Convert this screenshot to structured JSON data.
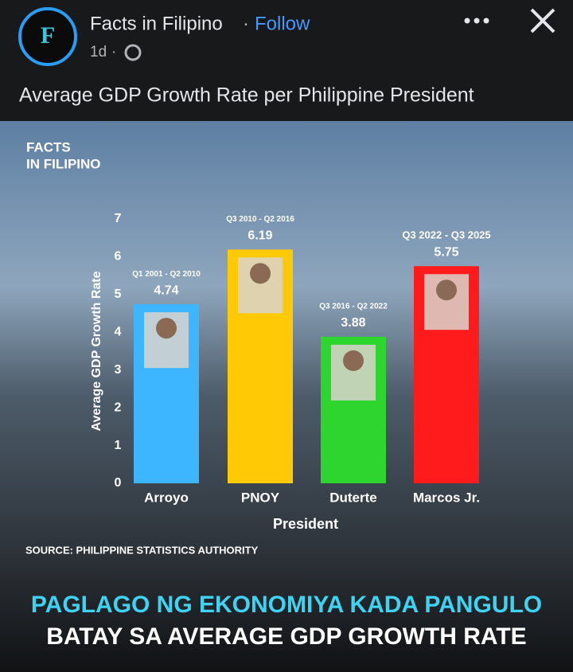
{
  "post": {
    "avatar": "F",
    "author": "Facts in Filipino",
    "follow": "Follow",
    "time": "1d",
    "caption": "Average GDP Growth Rate per Philippine President"
  },
  "image": {
    "brand": [
      "FACTS",
      "IN FILIPINO"
    ],
    "source": "SOURCE: PHILIPPINE STATISTICS AUTHORITY",
    "headline": [
      "PAGLAGO NG EKONOMIYA KADA PANGULO",
      "BATAY SA AVERAGE GDP GROWTH RATE"
    ]
  },
  "chart_data": {
    "type": "bar",
    "x_label": "President",
    "y_label": "Average GDP Growth Rate",
    "categories": [
      "Arroyo",
      "PNOY",
      "Duterte",
      "Marcos Jr."
    ],
    "periods": [
      "Q1 2001 - Q2 2010",
      "Q3 2010 - Q2 2016",
      "Q3 2016 - Q2 2022",
      "Q3 2022 - Q3 2025"
    ],
    "values": [
      4.74,
      6.19,
      3.88,
      5.75
    ],
    "colors": [
      "#3db5ff",
      "#ffc905",
      "#2ed52e",
      "#ff1b1b"
    ],
    "ylim": [
      0,
      7
    ],
    "yticks": [
      0,
      1,
      2,
      3,
      4,
      5,
      6,
      7
    ],
    "grid": false
  }
}
